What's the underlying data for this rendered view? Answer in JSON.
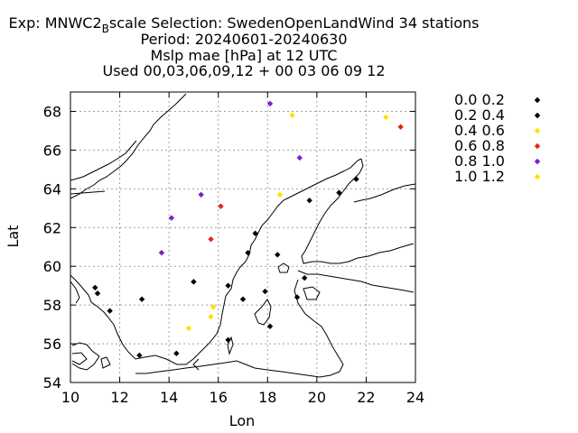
{
  "chart_data": {
    "type": "scatter",
    "title_lines": [
      {
        "pre": "Exp: MNWC2",
        "sub": "B",
        "post": "scale   Selection: SwedenOpenLandWind      34 stations"
      },
      {
        "text": "Period: 20240601-20240630"
      },
      {
        "text": "Mslp mae [hPa] at  12 UTC"
      },
      {
        "text": "Used 00,03,06,09,12 + 00 03 06 09 12"
      }
    ],
    "xlabel": "Lon",
    "ylabel": "Lat",
    "xlim": [
      10,
      24
    ],
    "ylim": [
      54,
      69
    ],
    "xticks": [
      10,
      12,
      14,
      16,
      18,
      20,
      22,
      24
    ],
    "yticks": [
      54,
      56,
      58,
      60,
      62,
      64,
      66,
      68
    ],
    "grid": true,
    "legend_position": "right",
    "series": [
      {
        "name": "0.0 0.2",
        "color": "#000000",
        "points": [
          [
            11.0,
            58.9
          ],
          [
            11.1,
            58.6
          ],
          [
            11.6,
            57.7
          ],
          [
            12.9,
            58.3
          ],
          [
            12.8,
            55.4
          ],
          [
            14.3,
            55.5
          ],
          [
            15.0,
            59.2
          ],
          [
            16.4,
            59.0
          ],
          [
            17.0,
            58.3
          ],
          [
            17.2,
            60.7
          ],
          [
            17.5,
            61.7
          ],
          [
            17.9,
            58.7
          ],
          [
            18.1,
            56.9
          ],
          [
            18.4,
            60.6
          ],
          [
            19.2,
            58.4
          ],
          [
            19.5,
            59.4
          ],
          [
            19.7,
            63.4
          ],
          [
            20.9,
            63.8
          ],
          [
            21.6,
            64.5
          ],
          [
            16.4,
            56.2
          ]
        ]
      },
      {
        "name": "0.2 0.4",
        "color": "#000000",
        "points": []
      },
      {
        "name": "0.4 0.6",
        "color": "#ffe000",
        "points": [
          [
            19.0,
            67.8
          ],
          [
            22.8,
            67.7
          ],
          [
            18.5,
            63.7
          ],
          [
            14.8,
            56.8
          ],
          [
            15.8,
            57.9
          ],
          [
            15.7,
            57.4
          ]
        ]
      },
      {
        "name": "0.6 0.8",
        "color": "#e8220e",
        "points": [
          [
            23.4,
            67.2
          ],
          [
            16.1,
            63.1
          ],
          [
            15.7,
            61.4
          ]
        ]
      },
      {
        "name": "0.8 1.0",
        "color": "#7a1ecc",
        "points": [
          [
            18.1,
            68.4
          ],
          [
            19.3,
            65.6
          ],
          [
            15.3,
            63.7
          ],
          [
            14.1,
            62.5
          ],
          [
            13.7,
            60.7
          ]
        ]
      },
      {
        "name": "1.0 1.2",
        "color": "#ffe000",
        "points": []
      }
    ]
  }
}
